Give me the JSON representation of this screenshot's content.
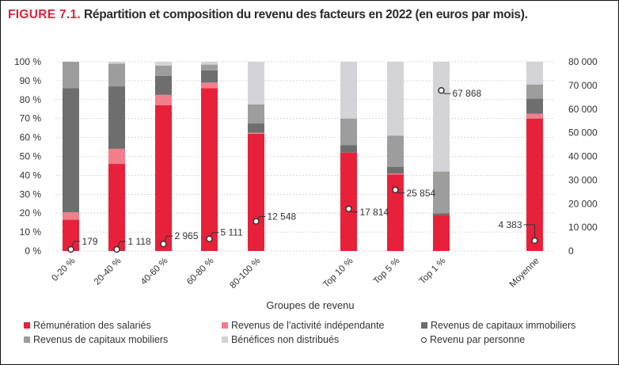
{
  "figure_label": "FIGURE 7.1.",
  "title": "Répartition et composition du revenu des facteurs en 2022 (en euros par mois).",
  "chart_data": {
    "type": "bar",
    "stacked": true,
    "title": "Répartition et composition du revenu des facteurs en 2022 (en euros par mois).",
    "xlabel": "Groupes de revenu",
    "ylabel_left": "",
    "ylabel_right": "",
    "categories": [
      "0-20 %",
      "20-40 %",
      "40-60 %",
      "60-80 %",
      "80-100 %",
      "Top 10 %",
      "Top 5 %",
      "Top 1 %",
      "Moyenne"
    ],
    "y_left": {
      "ylim": [
        0,
        100
      ],
      "ticks": [
        "0 %",
        "10 %",
        "20 %",
        "30 %",
        "40 %",
        "50 %",
        "60 %",
        "70 %",
        "80 %",
        "90 %",
        "100 %"
      ]
    },
    "y_right": {
      "ylim": [
        0,
        80000
      ],
      "ticks": [
        "0",
        "10 000",
        "20 000",
        "30 000",
        "40 000",
        "50 000",
        "60 000",
        "70 000",
        "80 000"
      ]
    },
    "grid": true,
    "legend_position": "bottom",
    "series": [
      {
        "name": "Rémunération des salariés",
        "color": "#e8213a",
        "values": [
          16.5,
          46,
          77,
          86,
          62,
          52,
          40.5,
          19,
          70
        ]
      },
      {
        "name": "Revenus de l'activité indépendante",
        "color": "#f17f8c",
        "values": [
          4,
          8,
          5.5,
          3,
          0.5,
          0,
          0.5,
          0,
          2.5
        ]
      },
      {
        "name": "Revenus de capitaux immobiliers",
        "color": "#6e6e6e",
        "values": [
          65.5,
          33,
          10,
          6.5,
          5,
          4,
          3.5,
          1,
          8
        ]
      },
      {
        "name": "Revenus de capitaux mobiliers",
        "color": "#9d9d9d",
        "values": [
          14,
          12,
          5.5,
          3,
          10,
          14,
          16.5,
          22,
          7.5
        ]
      },
      {
        "name": "Bénéfices non distribués",
        "color": "#d3d3d8",
        "values": [
          0,
          1,
          2,
          1.5,
          22.5,
          30,
          39,
          58,
          12
        ]
      }
    ],
    "line_series": {
      "name": "Revenu par personne",
      "axis": "right",
      "values": [
        179,
        1118,
        2965,
        5111,
        12548,
        17814,
        25854,
        67868,
        4383
      ],
      "labels": [
        "179",
        "1 118",
        "2 965",
        "5 111",
        "12 548",
        "17 814",
        "25 854",
        "67 868",
        "4 383"
      ]
    }
  },
  "legend": [
    {
      "name": "Rémunération des salariés",
      "symbol": "square",
      "color": "#e8213a"
    },
    {
      "name": "Revenus de l'activité indépendante",
      "symbol": "square",
      "color": "#f17f8c"
    },
    {
      "name": "Revenus de capitaux immobiliers",
      "symbol": "square",
      "color": "#6e6e6e"
    },
    {
      "name": "Revenus de capitaux mobiliers",
      "symbol": "square",
      "color": "#9d9d9d"
    },
    {
      "name": "Bénéfices non distribués",
      "symbol": "square",
      "color": "#d3d3d8"
    },
    {
      "name": "Revenu par personne",
      "symbol": "circle",
      "color": "#333333"
    }
  ]
}
